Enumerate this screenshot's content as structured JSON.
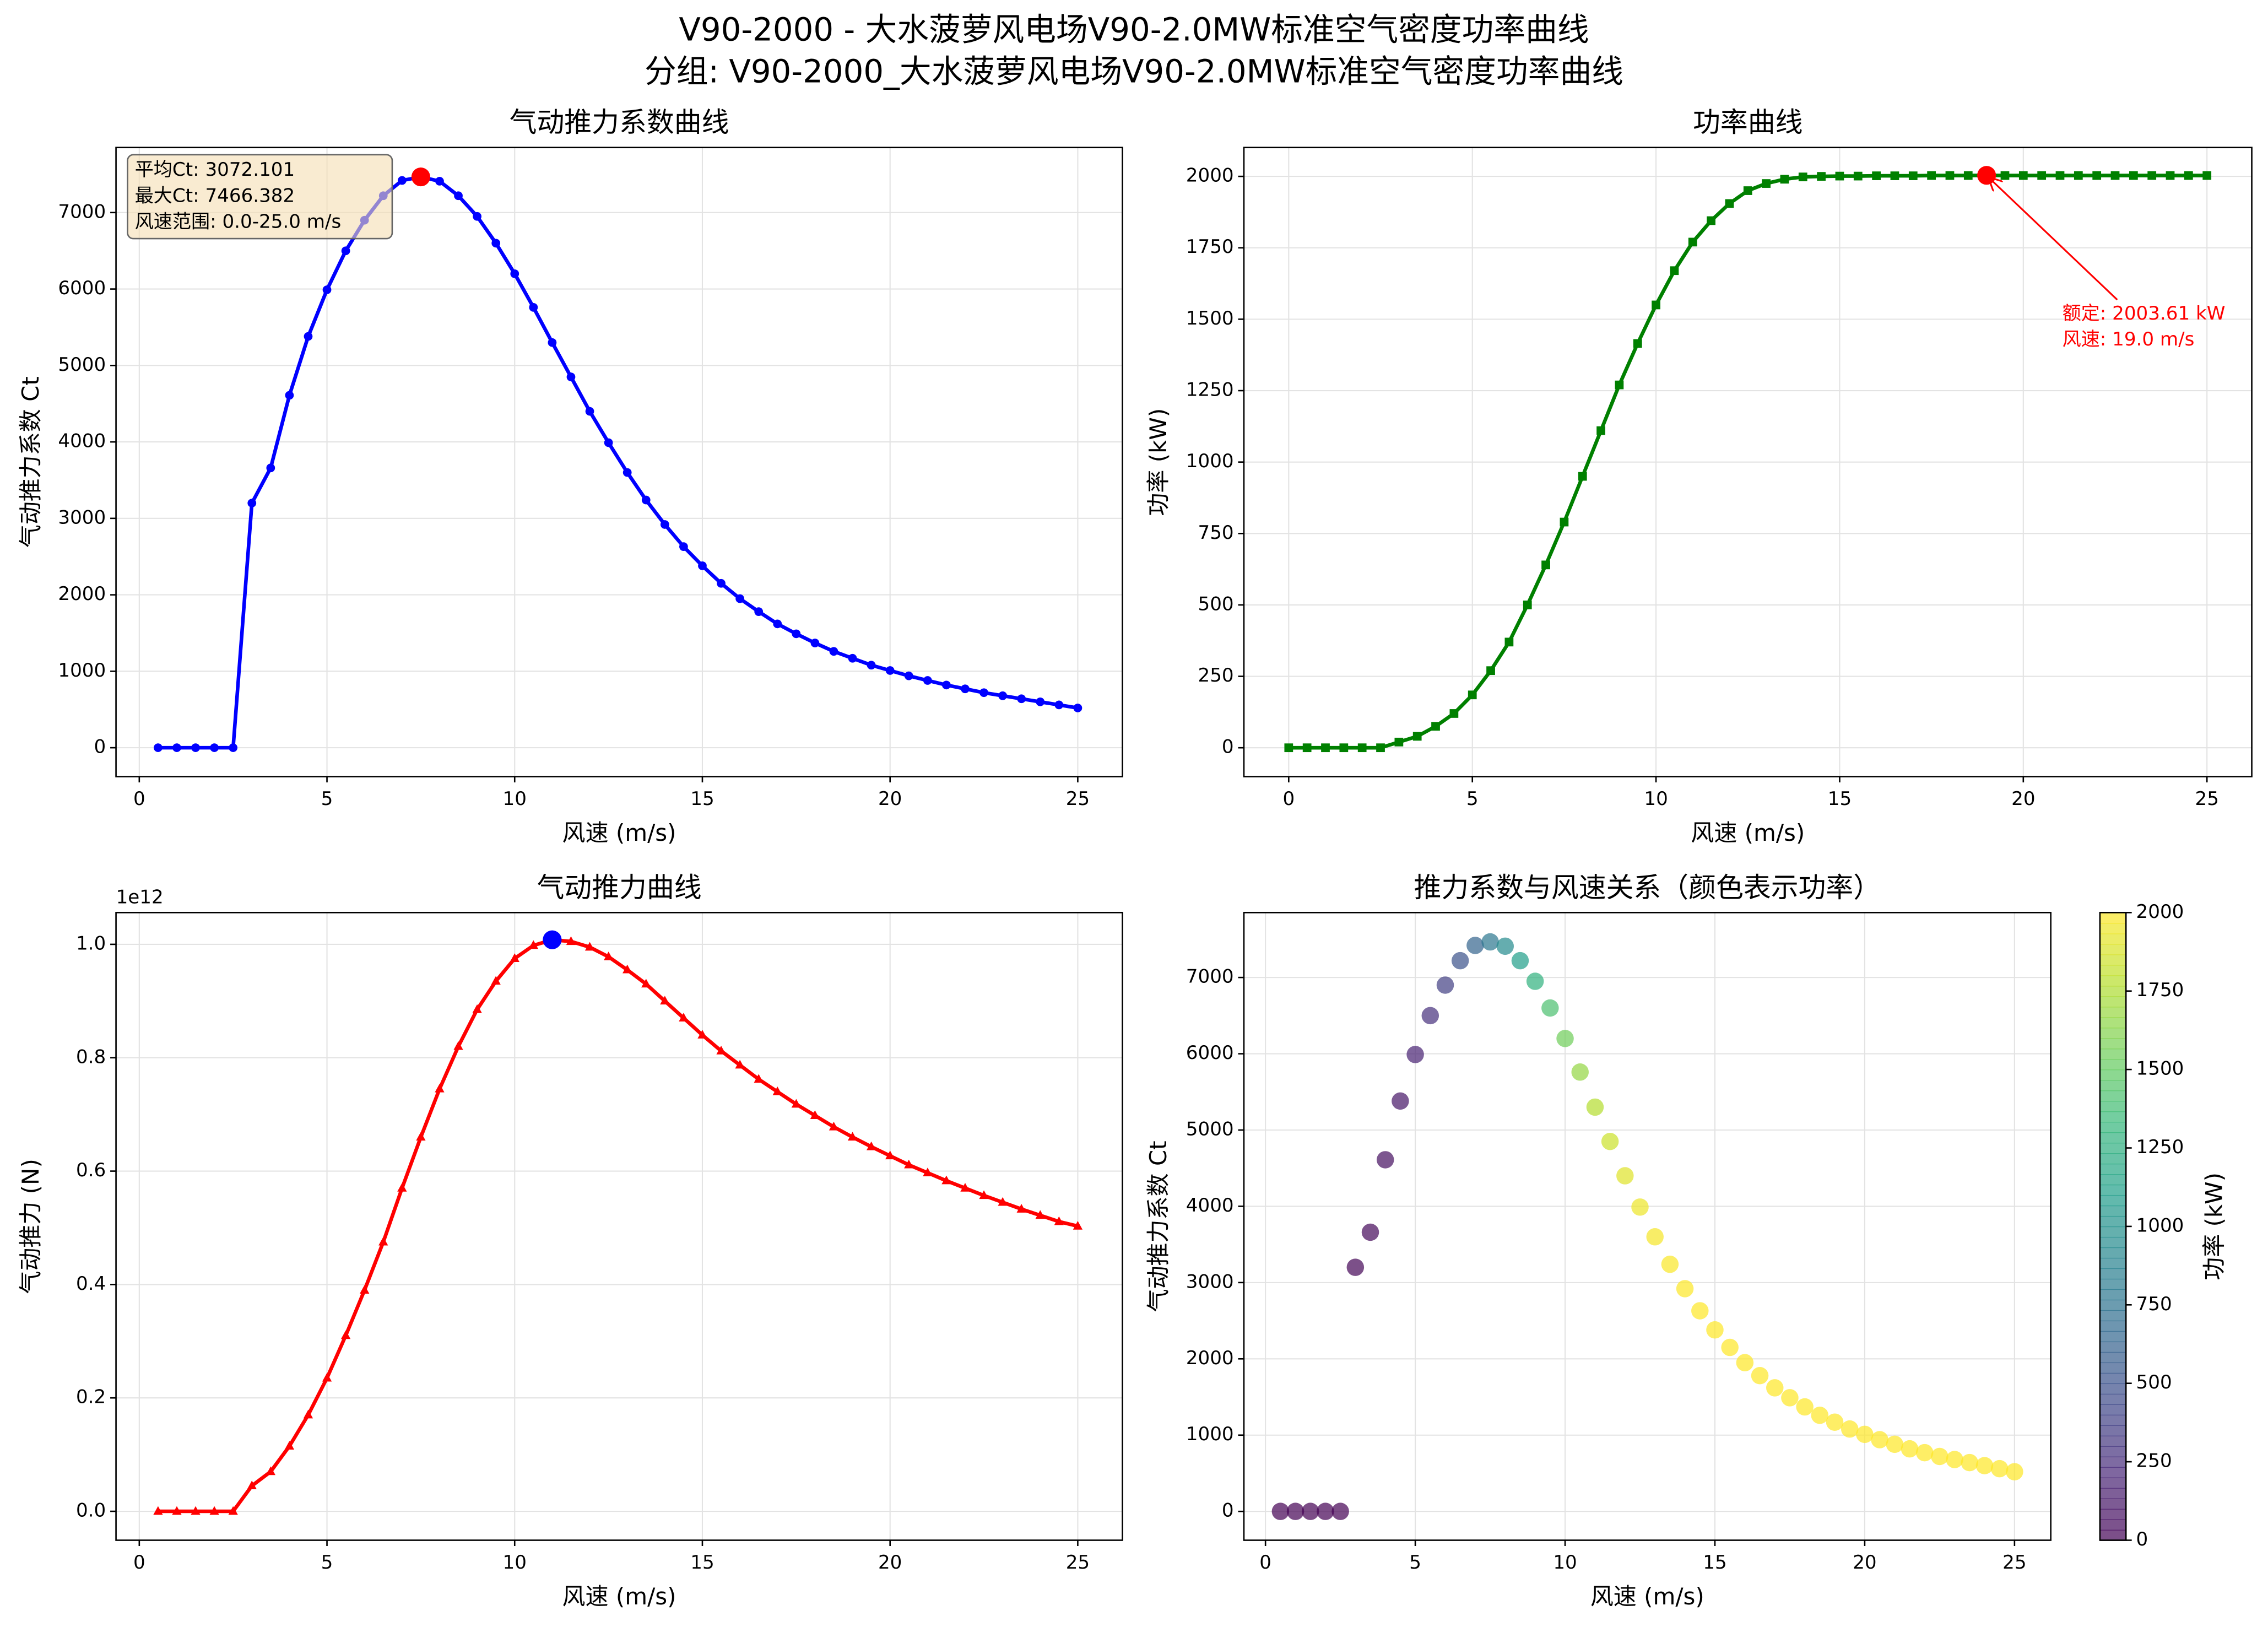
{
  "figure_title": [
    "V90-2000 - 大水菠萝风电场V90-2.0MW标准空气密度功率曲线",
    "分组: V90-2000_大水菠萝风电场V90-2.0MW标准空气密度功率曲线"
  ],
  "chart_data": [
    {
      "type": "line",
      "title": "气动推力系数曲线",
      "x_label": "风速 (m/s)",
      "y_label": "气动推力系数 Ct",
      "x": [
        0.5,
        1,
        1.5,
        2,
        2.5,
        3,
        3.5,
        4,
        4.5,
        5,
        5.5,
        6,
        6.5,
        7,
        7.5,
        8,
        8.5,
        9,
        9.5,
        10,
        10.5,
        11,
        11.5,
        12,
        12.5,
        13,
        13.5,
        14,
        14.5,
        15,
        15.5,
        16,
        16.5,
        17,
        17.5,
        18,
        18.5,
        19,
        19.5,
        20,
        20.5,
        21,
        21.5,
        22,
        22.5,
        23,
        23.5,
        24,
        24.5,
        25
      ],
      "series": [
        {
          "color": "#0000ff",
          "marker": "circle",
          "max_marker_color": "#ff0000",
          "values": [
            0,
            0,
            0,
            0,
            0,
            3200,
            3660,
            4610,
            5380,
            5990,
            6500,
            6900,
            7220,
            7420,
            7466.382,
            7410,
            7220,
            6950,
            6600,
            6200,
            5760,
            5300,
            4850,
            4400,
            3990,
            3600,
            3240,
            2920,
            2630,
            2380,
            2150,
            1950,
            1780,
            1620,
            1490,
            1370,
            1260,
            1170,
            1080,
            1010,
            940,
            880,
            820,
            770,
            720,
            680,
            640,
            600,
            560,
            520
          ]
        }
      ],
      "xlim": [
        -0.62,
        26.19
      ],
      "xticks": [
        0,
        5,
        10,
        15,
        20,
        25
      ],
      "ylim": [
        -378,
        7851
      ],
      "yticks": [
        0,
        1000,
        2000,
        3000,
        4000,
        5000,
        6000,
        7000
      ],
      "grid": true,
      "annotation": {
        "lines": [
          "平均Ct: 3072.101",
          "最大Ct: 7466.382",
          "风速范围: 0.0-25.0 m/s"
        ]
      }
    },
    {
      "type": "line",
      "title": "功率曲线",
      "x_label": "风速 (m/s)",
      "y_label": "功率 (kW)",
      "x": [
        0,
        0.5,
        1,
        1.5,
        2,
        2.5,
        3,
        3.5,
        4,
        4.5,
        5,
        5.5,
        6,
        6.5,
        7,
        7.5,
        8,
        8.5,
        9,
        9.5,
        10,
        10.5,
        11,
        11.5,
        12,
        12.5,
        13,
        13.5,
        14,
        14.5,
        15,
        15.5,
        16,
        16.5,
        17,
        17.5,
        18,
        18.5,
        19,
        19.5,
        20,
        20.5,
        21,
        21.5,
        22,
        22.5,
        23,
        23.5,
        24,
        24.5,
        25
      ],
      "series": [
        {
          "color": "#008000",
          "marker": "square",
          "max_marker_color": "#ff0000",
          "values": [
            0,
            0,
            0,
            0,
            0,
            0,
            20,
            40,
            75,
            120,
            185,
            270,
            370,
            500,
            640,
            790,
            950,
            1110,
            1270,
            1415,
            1550,
            1670,
            1770,
            1845,
            1905,
            1950,
            1975,
            1990,
            1998,
            2000,
            2001,
            2001,
            2002,
            2002,
            2002,
            2003,
            2003,
            2003,
            2003.61,
            2003,
            2003,
            2003,
            2003,
            2003,
            2003,
            2003,
            2003,
            2003,
            2003,
            2003,
            2003
          ]
        }
      ],
      "xlim": [
        -1.22,
        26.22
      ],
      "xticks": [
        0,
        5,
        10,
        15,
        20,
        25
      ],
      "ylim": [
        -101,
        2101
      ],
      "yticks": [
        0,
        250,
        500,
        750,
        1000,
        1250,
        1500,
        1750,
        2000
      ],
      "grid": true,
      "annotation": {
        "lines": [
          "额定: 2003.61 kW",
          "风速: 19.0 m/s"
        ],
        "color": "#ff0000"
      }
    },
    {
      "type": "line",
      "title": "气动推力曲线",
      "x_label": "风速 (m/s)",
      "y_label": "气动推力 (N)",
      "offset_label": "1e12",
      "x": [
        0.5,
        1,
        1.5,
        2,
        2.5,
        3,
        3.5,
        4,
        4.5,
        5,
        5.5,
        6,
        6.5,
        7,
        7.5,
        8,
        8.5,
        9,
        9.5,
        10,
        10.5,
        11,
        11.5,
        12,
        12.5,
        13,
        13.5,
        14,
        14.5,
        15,
        15.5,
        16,
        16.5,
        17,
        17.5,
        18,
        18.5,
        19,
        19.5,
        20,
        20.5,
        21,
        21.5,
        22,
        22.5,
        23,
        23.5,
        24,
        24.5,
        25
      ],
      "series": [
        {
          "color": "#ff0000",
          "marker": "triangle",
          "max_marker_color": "#0000ff",
          "values": [
            0,
            0,
            0,
            0,
            0,
            45000000000.0,
            70000000000.0,
            115000000000.0,
            170000000000.0,
            235000000000.0,
            310000000000.0,
            390000000000.0,
            475000000000.0,
            570000000000.0,
            660000000000.0,
            745000000000.0,
            820000000000.0,
            885000000000.0,
            935000000000.0,
            975000000000.0,
            998000000000.0,
            1008000000000.0,
            1005000000000.0,
            995000000000.0,
            978000000000.0,
            955000000000.0,
            930000000000.0,
            900000000000.0,
            870000000000.0,
            840000000000.0,
            812000000000.0,
            787000000000.0,
            762000000000.0,
            740000000000.0,
            718000000000.0,
            698000000000.0,
            678000000000.0,
            660000000000.0,
            643000000000.0,
            627000000000.0,
            611000000000.0,
            597000000000.0,
            583000000000.0,
            570000000000.0,
            557000000000.0,
            545000000000.0,
            533000000000.0,
            522000000000.0,
            511000000000.0,
            503000000000.0
          ]
        }
      ],
      "xlim": [
        -0.62,
        26.19
      ],
      "xticks": [
        0,
        5,
        10,
        15,
        20,
        25
      ],
      "ylim": [
        -51000000000.0,
        1056000000000.0
      ],
      "yticks": [
        {
          "value": 0,
          "label": "0.0"
        },
        {
          "value": 200000000000.0,
          "label": "0.2"
        },
        {
          "value": 400000000000.0,
          "label": "0.4"
        },
        {
          "value": 600000000000.0,
          "label": "0.6"
        },
        {
          "value": 800000000000.0,
          "label": "0.8"
        },
        {
          "value": 1000000000000.0,
          "label": "1.0"
        }
      ],
      "grid": true
    },
    {
      "type": "scatter",
      "title": "推力系数与风速关系（颜色表示功率）",
      "x_label": "风速 (m/s)",
      "y_label": "气动推力系数 Ct",
      "x": [
        0.5,
        1,
        1.5,
        2,
        2.5,
        3,
        3.5,
        4,
        4.5,
        5,
        5.5,
        6,
        6.5,
        7,
        7.5,
        8,
        8.5,
        9,
        9.5,
        10,
        10.5,
        11,
        11.5,
        12,
        12.5,
        13,
        13.5,
        14,
        14.5,
        15,
        15.5,
        16,
        16.5,
        17,
        17.5,
        18,
        18.5,
        19,
        19.5,
        20,
        20.5,
        21,
        21.5,
        22,
        22.5,
        23,
        23.5,
        24,
        24.5,
        25
      ],
      "y": [
        0,
        0,
        0,
        0,
        0,
        3200,
        3660,
        4610,
        5380,
        5990,
        6500,
        6900,
        7220,
        7420,
        7466.382,
        7410,
        7220,
        6950,
        6600,
        6200,
        5760,
        5300,
        4850,
        4400,
        3990,
        3600,
        3240,
        2920,
        2630,
        2380,
        2150,
        1950,
        1780,
        1620,
        1490,
        1370,
        1260,
        1170,
        1080,
        1010,
        940,
        880,
        820,
        770,
        720,
        680,
        640,
        600,
        560,
        520
      ],
      "c": [
        0,
        0,
        0,
        0,
        0,
        20,
        40,
        75,
        120,
        185,
        270,
        370,
        500,
        640,
        790,
        950,
        1110,
        1270,
        1415,
        1550,
        1670,
        1770,
        1845,
        1905,
        1950,
        1975,
        1990,
        1998,
        2000,
        2001,
        2001,
        2002,
        2002,
        2002,
        2003,
        2003,
        2003,
        2003.61,
        2003,
        2003,
        2003,
        2003,
        2003,
        2003,
        2003,
        2003,
        2003,
        2003,
        2003,
        2003
      ],
      "colormap": "viridis",
      "alpha": 0.7,
      "xlim": [
        -0.72,
        26.21
      ],
      "xticks": [
        0,
        5,
        10,
        15,
        20,
        25
      ],
      "ylim": [
        -378,
        7851
      ],
      "yticks": [
        0,
        1000,
        2000,
        3000,
        4000,
        5000,
        6000,
        7000
      ],
      "grid": true,
      "colorbar": {
        "label": "功率 (kW)",
        "lim": [
          0,
          2000
        ],
        "ticks": [
          0,
          250,
          500,
          750,
          1000,
          1250,
          1500,
          1750,
          2000
        ]
      }
    }
  ]
}
